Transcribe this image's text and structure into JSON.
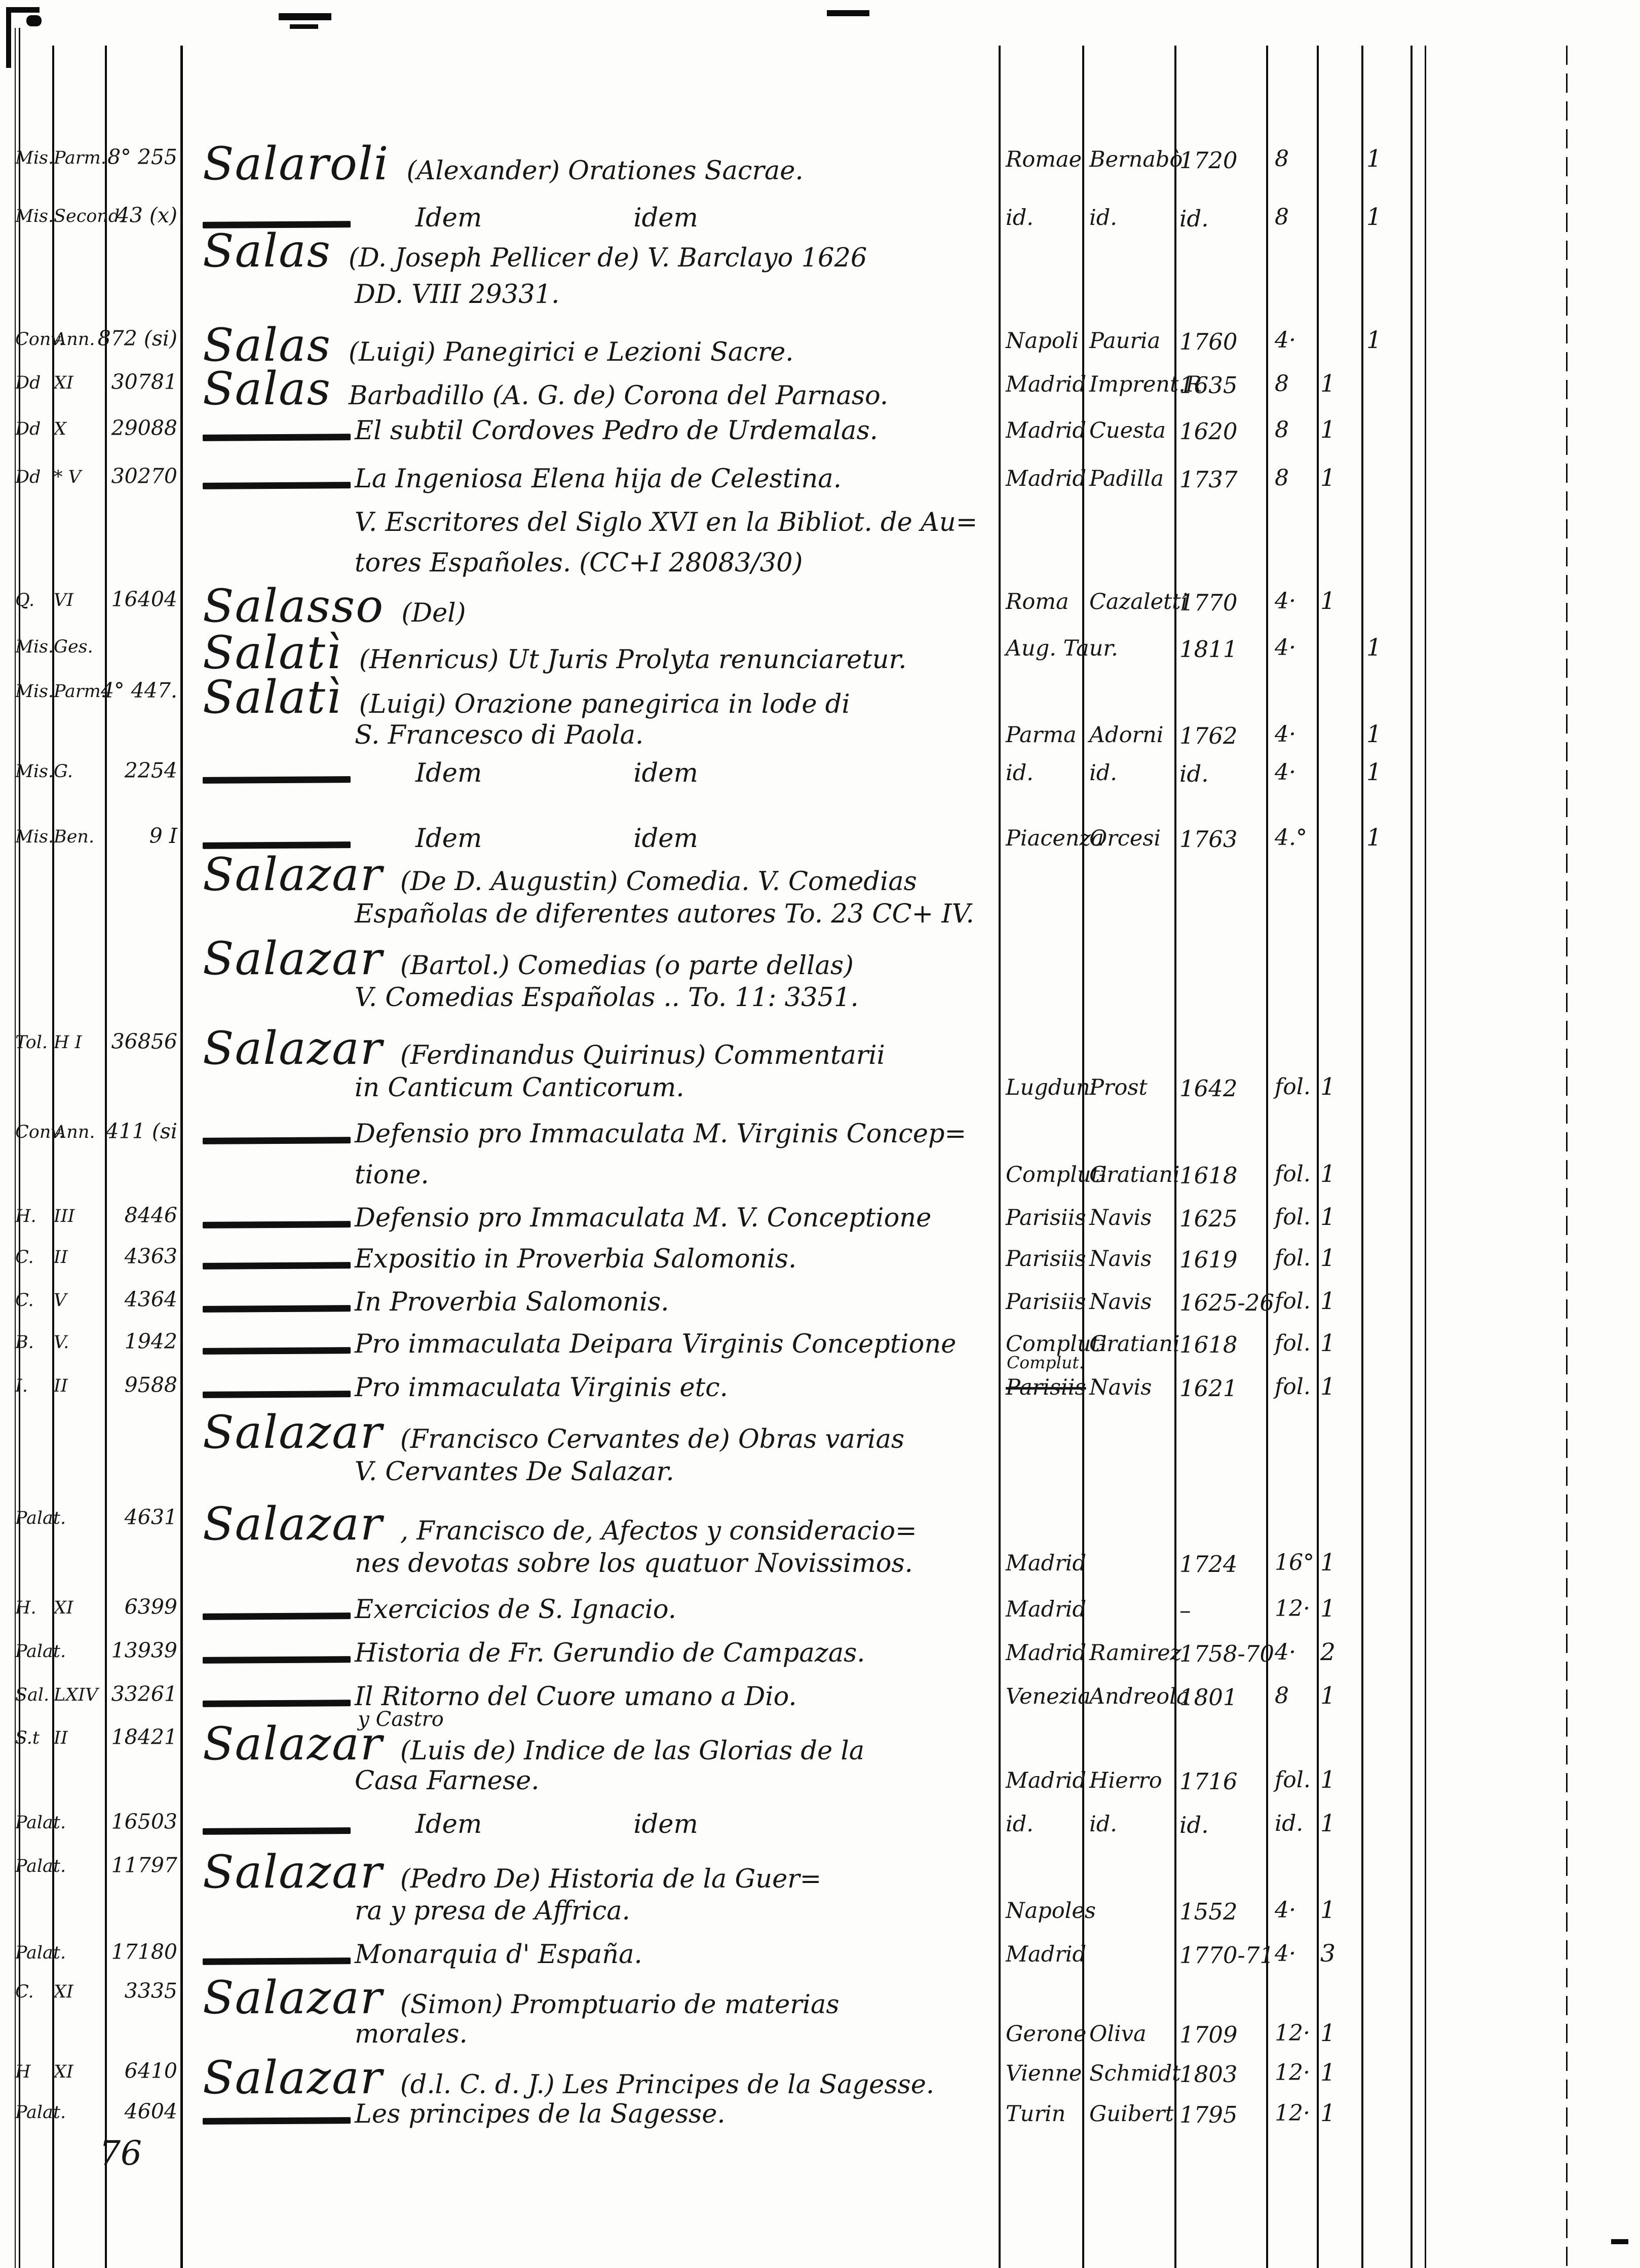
{
  "footer": {
    "page_number": "76"
  },
  "catalog": {
    "lines": [
      {
        "s1": "Mis.",
        "s2": "Parm.",
        "num": "8° 255",
        "head": "Salaroli",
        "text": "(Alexander) Orationes Sacrae.",
        "place": "Romae",
        "printer": "Bernabò",
        "year": "1720",
        "fmt": "8",
        "c2": "1"
      },
      {
        "s1": "Mis.",
        "s2": "Second.",
        "num": "43 (x)",
        "dash": true,
        "text": "Idem",
        "text2": "idem",
        "place": "id.",
        "printer": "id.",
        "year": "id.",
        "fmt": "8",
        "c2": "1"
      },
      {
        "head": "Salas",
        "text": "(D. Joseph Pellicer de) V. Barclayo 1626"
      },
      {
        "text": "DD. VIII 29331."
      },
      {
        "s1": "Conv.",
        "s2": "Ann.",
        "num": "872 (si)",
        "head": "Salas",
        "text": "(Luigi) Panegirici e Lezioni Sacre.",
        "place": "Napoli",
        "printer": "Pauria",
        "year": "1760",
        "fmt": "4·",
        "c2": "1"
      },
      {
        "s1": "Dd",
        "s2": "XI",
        "num": "30781",
        "head": "Salas",
        "text": "Barbadillo (A. G. de) Corona del Parnaso.",
        "place": "Madrid",
        "printer": "Imprent.R",
        "year": "1635",
        "fmt": "8",
        "c1": "1"
      },
      {
        "s1": "Dd",
        "s2": "X",
        "num": "29088",
        "dash": true,
        "text": "El subtil Cordoves Pedro de Urdemalas.",
        "place": "Madrid",
        "printer": "Cuesta",
        "year": "1620",
        "fmt": "8",
        "c1": "1"
      },
      {
        "s1": "Dd",
        "s2": "* V",
        "num": "30270",
        "dash": true,
        "text": "La Ingeniosa Elena hija de Celestina.",
        "place": "Madrid",
        "printer": "Padilla",
        "year": "1737",
        "fmt": "8",
        "c1": "1"
      },
      {
        "text": "V. Escritores del Siglo XVI en la Bibliot. de Au="
      },
      {
        "text": "tores Españoles. (CC+I 28083/30)"
      },
      {
        "s1": "Q.",
        "s2": "VI",
        "num": "16404",
        "head": "Salasso",
        "text": "(Del)",
        "place": "Roma",
        "printer": "Cazaletti",
        "year": "1770",
        "fmt": "4·",
        "c1": "1"
      },
      {
        "s1": "Mis.",
        "s2": "Ges.",
        "head": "Salatì",
        "text": "(Henricus) Ut Juris Prolyta renunciaretur.",
        "place": "Aug. Taur.",
        "year": "1811",
        "fmt": "4·",
        "c2": "1"
      },
      {
        "s1": "Mis.",
        "s2": "Parm.",
        "num": "4° 447.",
        "head": "Salatì",
        "text": "(Luigi) Orazione panegirica in lode di"
      },
      {
        "text": "S. Francesco di Paola.",
        "place": "Parma",
        "printer": "Adorni",
        "year": "1762",
        "fmt": "4·",
        "c2": "1"
      },
      {
        "s1": "Mis.",
        "s2": "G.",
        "num": "2254",
        "dash": true,
        "text": "Idem",
        "text2": "idem",
        "place": "id.",
        "printer": "id.",
        "year": "id.",
        "fmt": "4·",
        "c2": "1"
      },
      {
        "s1": "Mis.",
        "s2": "Ben.",
        "num": "9 I",
        "dash": true,
        "text": "Idem",
        "text2": "idem",
        "place": "Piacenza",
        "printer": "Orcesi",
        "year": "1763",
        "fmt": "4.°",
        "c2": "1"
      },
      {
        "head": "Salazar",
        "text": "(De D. Augustin) Comedia. V. Comedias"
      },
      {
        "text": "Españolas de diferentes autores To. 23 CC+ IV."
      },
      {
        "head": "Salazar",
        "text": "(Bartol.) Comedias (o parte dellas)"
      },
      {
        "text": "V. Comedias Españolas .. To. 11: 3351."
      },
      {
        "s1": "Tol.",
        "s2": "H I",
        "num": "36856",
        "head": "Salazar",
        "text": "(Ferdinandus Quirinus) Commentarii"
      },
      {
        "text": "in Canticum Canticorum.",
        "place": "Lugduni",
        "printer": "Prost",
        "year": "1642",
        "fmt": "fol.",
        "c1": "1"
      },
      {
        "s1": "Conv.",
        "s2": "Ann.",
        "num": "411 (si",
        "dash": true,
        "text": "Defensio pro Immaculata M. Virginis Concep="
      },
      {
        "text": "tione.",
        "place": "Compluti",
        "printer": "Gratiani",
        "year": "1618",
        "fmt": "fol.",
        "c1": "1"
      },
      {
        "s1": "H.",
        "s2": "III",
        "num": "8446",
        "dash": true,
        "text": "Defensio pro Immaculata M. V. Conceptione",
        "place": "Parisiis",
        "printer": "Navis",
        "year": "1625",
        "fmt": "fol.",
        "c1": "1"
      },
      {
        "s1": "C.",
        "s2": "II",
        "num": "4363",
        "dash": true,
        "text": "Expositio in Proverbia Salomonis.",
        "place": "Parisiis",
        "printer": "Navis",
        "year": "1619",
        "fmt": "fol.",
        "c1": "1"
      },
      {
        "s1": "C.",
        "s2": "V",
        "num": "4364",
        "dash": true,
        "text": "In Proverbia Salomonis.",
        "place": "Parisiis",
        "printer": "Navis",
        "year": "1625-26",
        "fmt": "fol.",
        "c1": "1"
      },
      {
        "s1": "B.",
        "s2": "V.",
        "num": "1942",
        "dash": true,
        "text": "Pro immaculata Deipara Virginis Conceptione",
        "place": "Compluti",
        "printer": "Gratiani",
        "year": "1618",
        "fmt": "fol.",
        "c1": "1"
      },
      {
        "s1": "I.",
        "s2": "II",
        "num": "9588",
        "dash": true,
        "text": "Pro immaculata Virginis etc.",
        "place": "Parisiis",
        "place_strike": true,
        "place_above": "Complut.",
        "printer": "Navis",
        "year": "1621",
        "fmt": "fol.",
        "c1": "1"
      },
      {
        "head": "Salazar",
        "text": "(Francisco Cervantes de) Obras varias"
      },
      {
        "text": "V. Cervantes De Salazar."
      },
      {
        "s1": "Palat.",
        "num": "4631",
        "head": "Salazar",
        "text": ", Francisco de, Afectos y consideracio="
      },
      {
        "text": "nes devotas sobre los quatuor Novissimos.",
        "place": "Madrid",
        "year": "1724",
        "fmt": "16°",
        "c1": "1"
      },
      {
        "s1": "H.",
        "s2": "XI",
        "num": "6399",
        "dash": true,
        "text": "Exercicios de S. Ignacio.",
        "place": "Madrid",
        "year": "–",
        "fmt": "12·",
        "c1": "1"
      },
      {
        "s1": "Palat.",
        "num": "13939",
        "dash": true,
        "text": "Historia de Fr. Gerundio de Campazas.",
        "place": "Madrid",
        "printer": "Ramirez",
        "year": "1758-70",
        "fmt": "4·",
        "c1": "2"
      },
      {
        "s1": "Sal.",
        "s2": "LXIV",
        "num": "33261",
        "dash": true,
        "text": "Il Ritorno del Cuore umano a Dio.",
        "place": "Venezia",
        "printer": "Andreola",
        "year": "1801",
        "fmt": "8",
        "c1": "1"
      },
      {
        "s1": "S.t",
        "s2": "II",
        "num": "18421",
        "head": "Salazar",
        "ins": "y Castro",
        "text": "(Luis de) Indice de las Glorias de la"
      },
      {
        "text": "Casa Farnese.",
        "place": "Madrid",
        "printer": "Hierro",
        "year": "1716",
        "fmt": "fol.",
        "c1": "1"
      },
      {
        "s1": "Palat.",
        "num": "16503",
        "dash": true,
        "text": "Idem",
        "text2": "idem",
        "place": "id.",
        "printer": "id.",
        "year": "id.",
        "fmt": "id.",
        "c1": "1"
      },
      {
        "s1": "Palat.",
        "num": "11797",
        "head": "Salazar",
        "text": "(Pedro De) Historia de la Guer="
      },
      {
        "text": "ra y presa de Affrica.",
        "place": "Napoles",
        "year": "1552",
        "fmt": "4·",
        "c1": "1"
      },
      {
        "s1": "Palat.",
        "num": "17180",
        "dash": true,
        "text": "Monarquia d' España.",
        "place": "Madrid",
        "year": "1770-71",
        "fmt": "4·",
        "c1": "3"
      },
      {
        "s1": "C.",
        "s2": "XI",
        "num": "3335",
        "head": "Salazar",
        "text": "(Simon) Promptuario de materias"
      },
      {
        "text": "morales.",
        "place": "Gerone",
        "printer": "Oliva",
        "year": "1709",
        "fmt": "12·",
        "c1": "1"
      },
      {
        "s1": "H",
        "s2": "XI",
        "num": "6410",
        "head": "Salazar",
        "text": "(d.l. C. d. J.) Les Principes de la Sagesse.",
        "place": "Vienne",
        "printer": "Schmidt",
        "year": "1803",
        "fmt": "12·",
        "c1": "1"
      },
      {
        "s1": "Palat.",
        "num": "4604",
        "dash": true,
        "text": "Les principes de la Sagesse.",
        "place": "Turin",
        "printer": "Guibert",
        "year": "1795",
        "fmt": "12·",
        "c1": "1"
      }
    ]
  }
}
